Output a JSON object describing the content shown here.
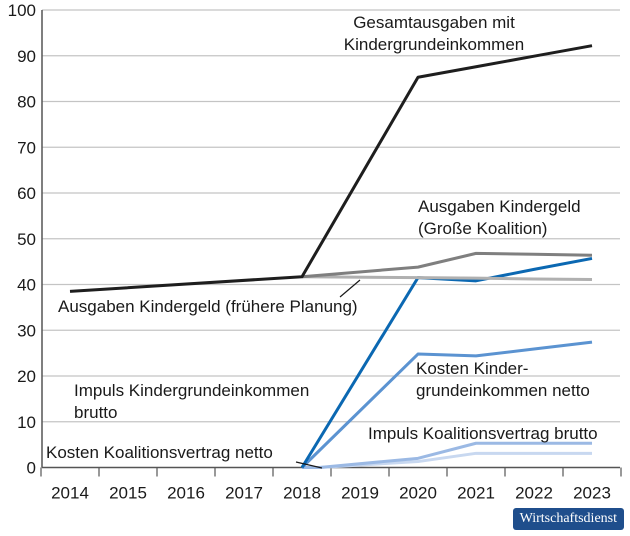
{
  "chart_data": {
    "type": "line",
    "title": "",
    "xlabel": "",
    "ylabel": "",
    "x": [
      2014,
      2015,
      2016,
      2017,
      2018,
      2019,
      2020,
      2021,
      2022,
      2023
    ],
    "xticks": [
      "2014",
      "2015",
      "2016",
      "2017",
      "2018",
      "2019",
      "2020",
      "2021",
      "2022",
      "2023"
    ],
    "ylim": [
      0,
      100
    ],
    "yticks": [
      "0",
      "10",
      "20",
      "30",
      "40",
      "50",
      "60",
      "70",
      "80",
      "90",
      "100"
    ],
    "grid": "horizontal",
    "series": [
      {
        "name": "Gesamtausgaben mit Kindergrundeinkommen",
        "color": "#1e1e1e",
        "x": [
          2014,
          2018,
          2020,
          2021,
          2022,
          2023
        ],
        "values": [
          38.5,
          41.7,
          85.3,
          87.6,
          89.9,
          92.2
        ]
      },
      {
        "name": "Ausgaben Kindergeld (Große Koalition)",
        "color": "#7f7f7f",
        "x": [
          2018,
          2020,
          2021,
          2022,
          2023
        ],
        "values": [
          41.7,
          43.8,
          46.8,
          46.6,
          46.4
        ]
      },
      {
        "name": "Ausgaben Kindergeld (frühere Planung)",
        "color": "#b0b0b0",
        "x": [
          2018,
          2020,
          2021,
          2022,
          2023
        ],
        "values": [
          41.7,
          41.5,
          41.4,
          41.2,
          41.1
        ]
      },
      {
        "name": "Impuls Kindergrundeinkommen brutto",
        "color": "#0b68b2",
        "x": [
          2018,
          2020,
          2021,
          2022,
          2023
        ],
        "values": [
          0,
          41.5,
          40.8,
          43.3,
          45.7
        ]
      },
      {
        "name": "Kosten Kindergrundeinkommen netto",
        "color": "#5b93d1",
        "x": [
          2018,
          2020,
          2021,
          2022,
          2023
        ],
        "values": [
          0,
          24.8,
          24.4,
          25.9,
          27.4
        ]
      },
      {
        "name": "Impuls Koalitionsvertrag brutto",
        "color": "#9bb9e4",
        "x": [
          2018,
          2018.3,
          2020,
          2021,
          2022,
          2023
        ],
        "values": [
          0,
          0,
          2.0,
          5.3,
          5.3,
          5.3
        ]
      },
      {
        "name": "Kosten Koalitionsvertrag netto",
        "color": "#c8d8f0",
        "x": [
          2018,
          2018.3,
          2020,
          2021,
          2022,
          2023
        ],
        "values": [
          0,
          0,
          1.3,
          3.1,
          3.1,
          3.1
        ]
      }
    ],
    "labels": {
      "gesamt": [
        "Gesamtausgaben mit",
        "Kindergrundeinkommen"
      ],
      "grosse": [
        "Ausgaben Kindergeld",
        "(Große Koalition)"
      ],
      "frueher": [
        "Ausgaben Kindergeld (frühere Planung)"
      ],
      "impuls_kge": [
        "Impuls Kindergrundeinkommen",
        "brutto"
      ],
      "kosten_kge": [
        "Kosten Kinder-",
        "grundeinkommen netto"
      ],
      "impuls_kv": [
        "Impuls Koalitionsvertrag brutto"
      ],
      "kosten_kv": [
        "Kosten Koalitionsvertrag netto"
      ]
    }
  },
  "logo": "Wirtschaftsdienst"
}
